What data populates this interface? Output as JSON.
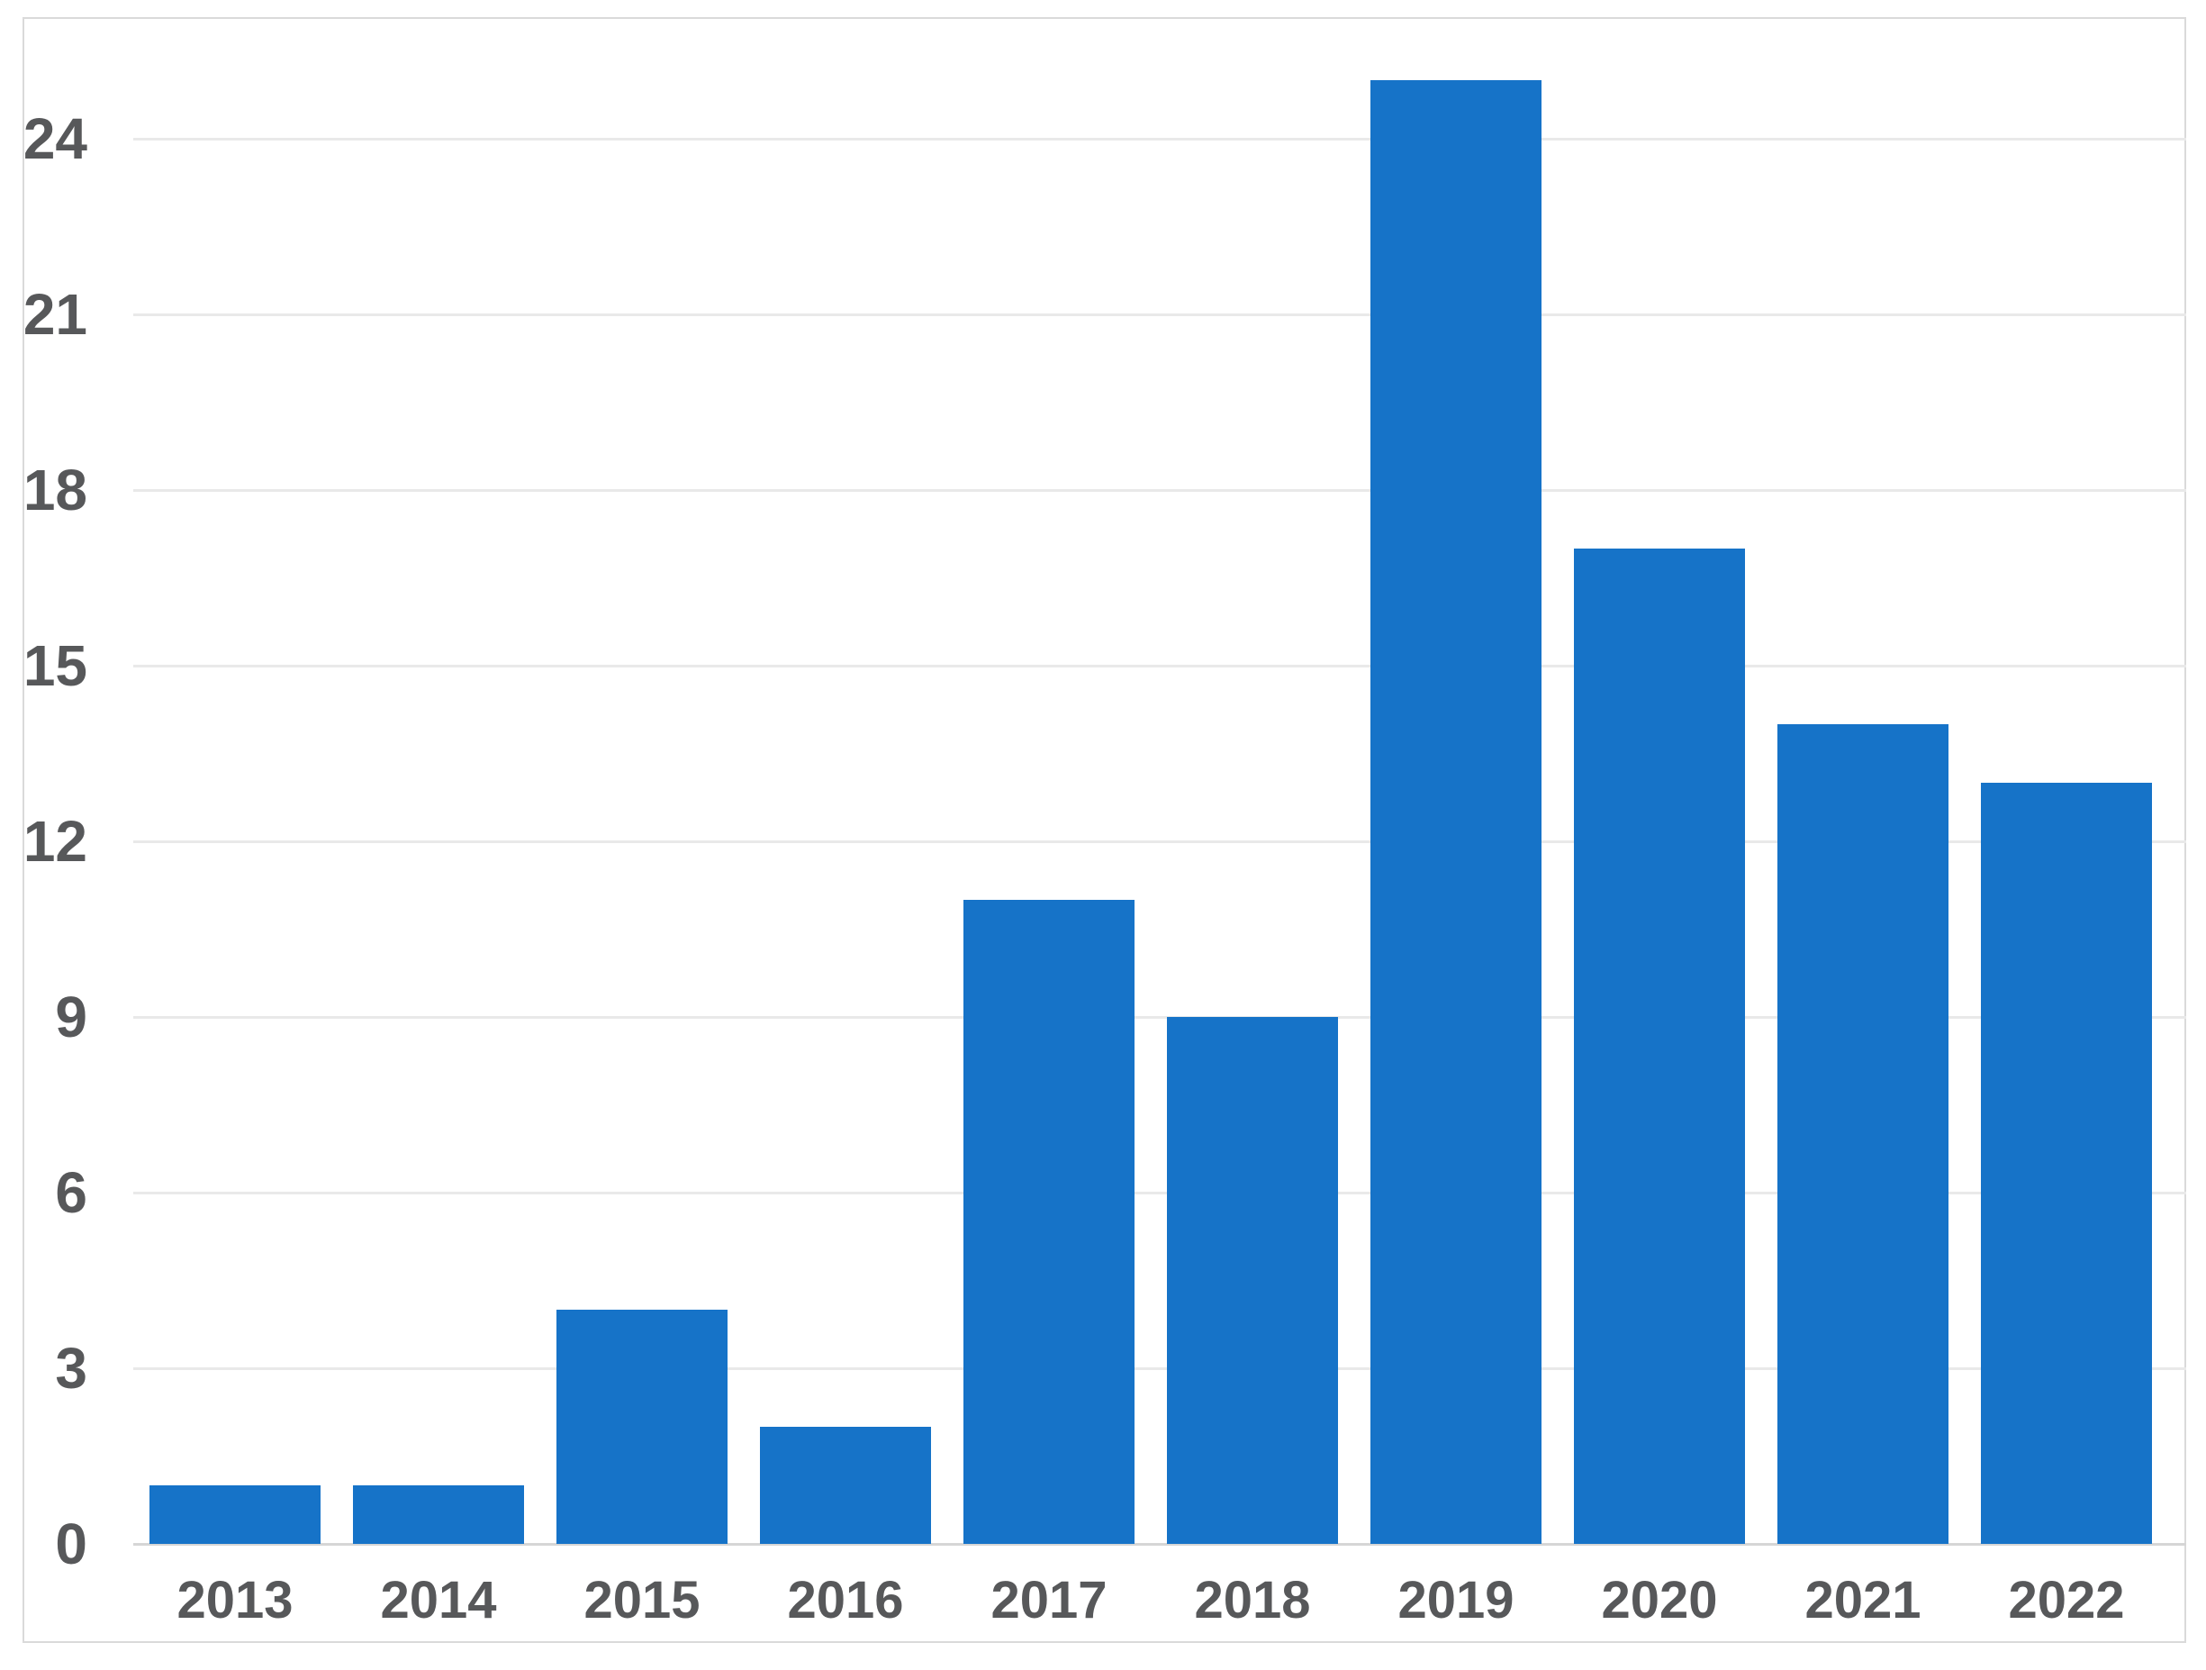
{
  "chart_data": {
    "type": "bar",
    "title": "",
    "xlabel": "",
    "ylabel": "",
    "categories": [
      "2013",
      "2014",
      "2015",
      "2016",
      "2017",
      "2018",
      "2019",
      "2020",
      "2021",
      "2022"
    ],
    "values": [
      1,
      1,
      4,
      2,
      11,
      9,
      25,
      17,
      14,
      13
    ],
    "yticks": [
      0,
      3,
      6,
      9,
      12,
      15,
      18,
      21,
      24
    ],
    "ylim": [
      0,
      26
    ],
    "grid": true,
    "legend": "none",
    "bar_color": "#1673c8",
    "grid_color": "#e9e9e9",
    "baseline_color": "#d6d6d6",
    "frame_color": "#dadada",
    "label_color": "#57585a"
  }
}
